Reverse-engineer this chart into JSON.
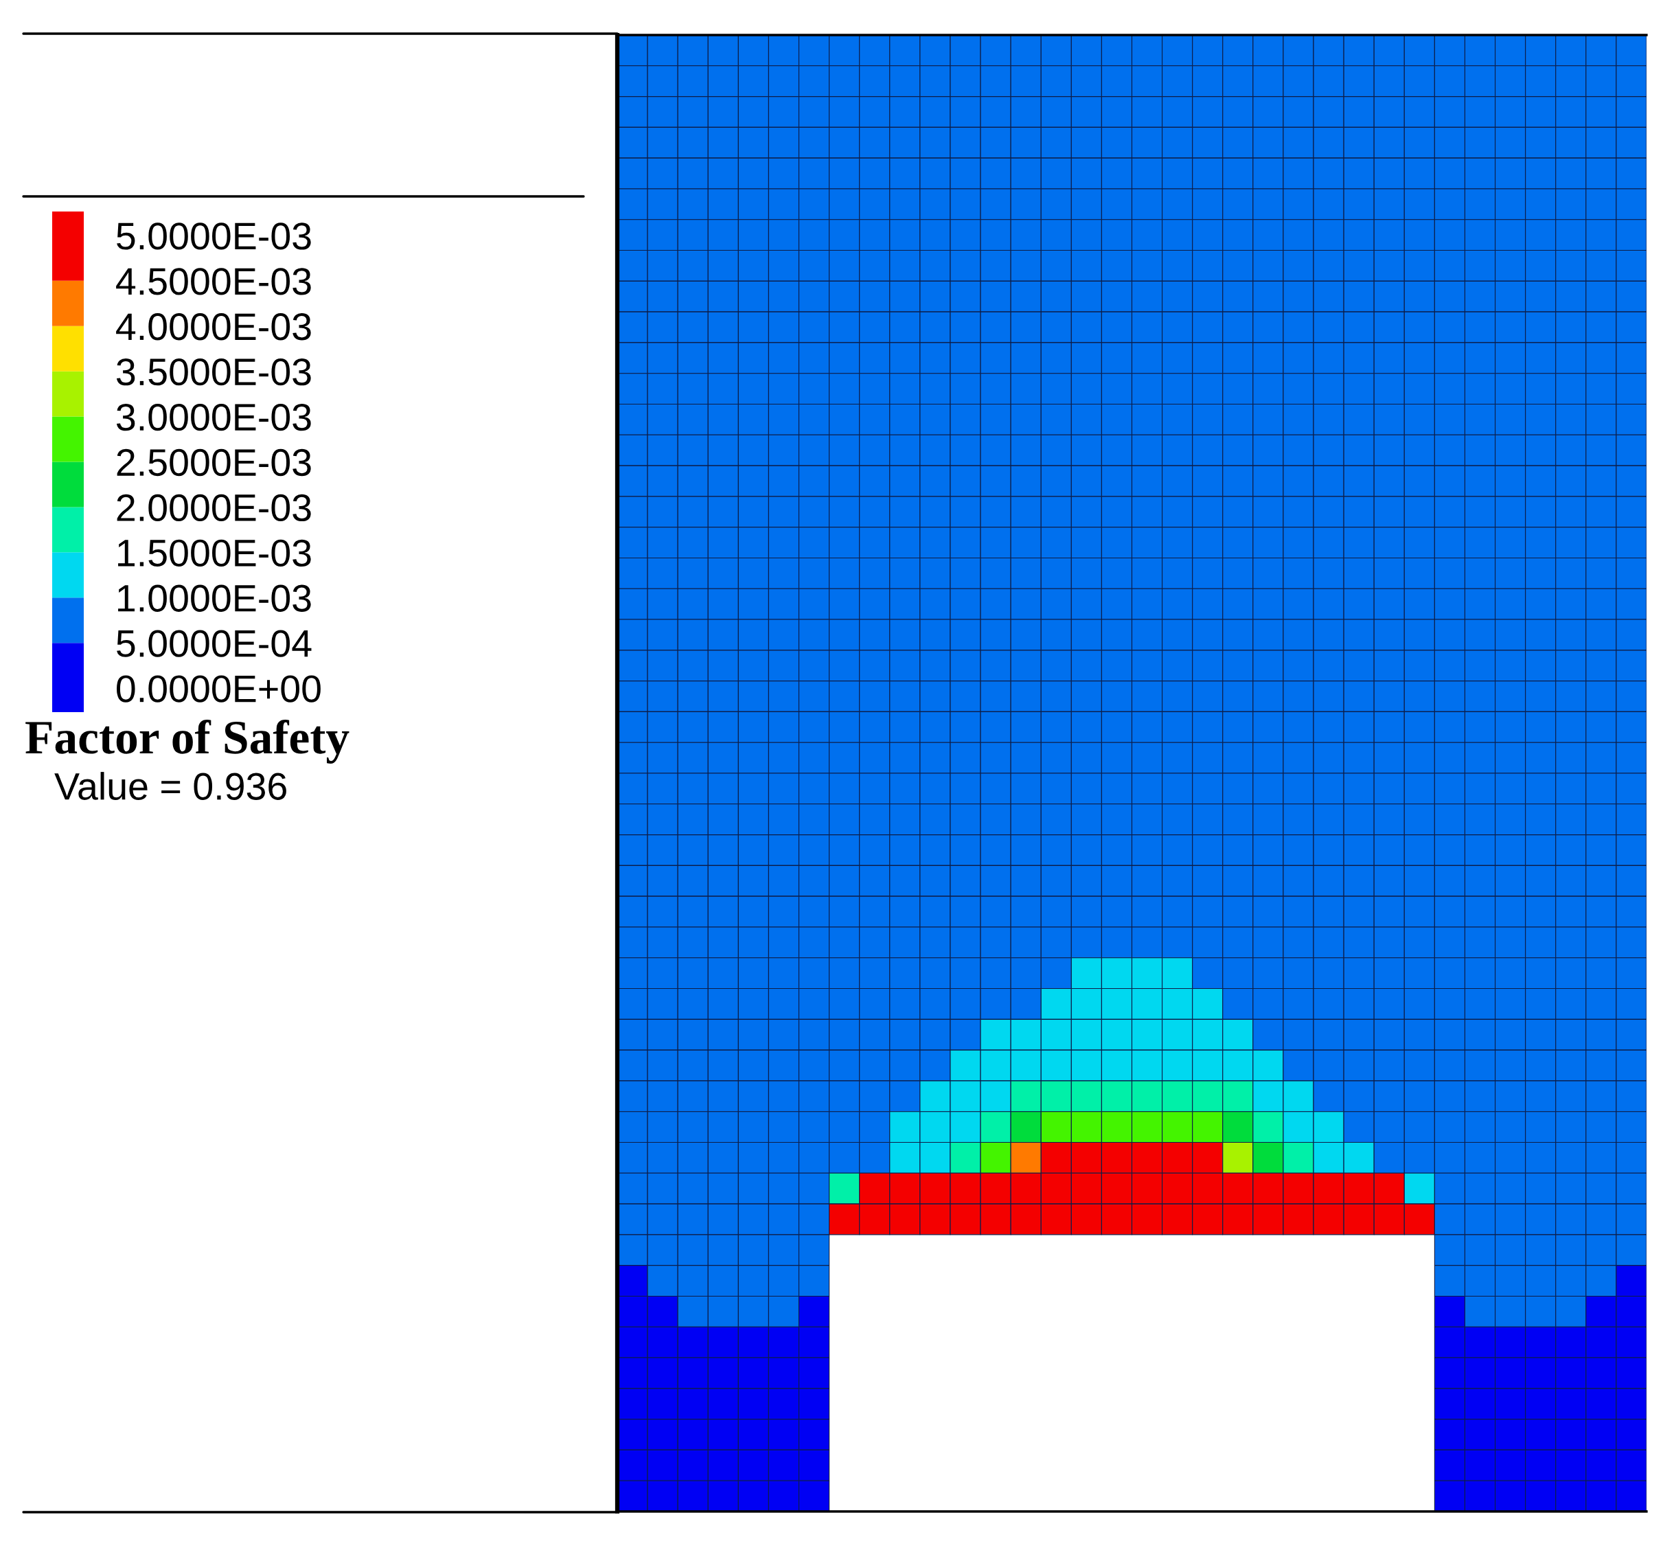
{
  "chart_data": {
    "type": "heatmap",
    "categories": [
      null,
      null,
      null,
      null,
      null,
      null,
      null,
      null,
      null,
      null,
      null,
      null,
      null,
      null,
      null,
      null,
      null,
      null,
      null,
      null,
      null,
      null,
      null,
      null,
      null,
      null,
      null,
      null,
      null,
      null,
      null,
      null,
      null,
      null
    ],
    "y_categories": [
      null,
      null,
      null,
      null,
      null,
      null,
      null,
      null,
      null,
      null,
      null,
      null,
      null,
      null,
      null,
      null,
      null,
      null,
      null,
      null,
      null,
      null,
      null,
      null,
      null,
      null,
      null,
      null,
      null,
      null,
      null,
      null,
      null,
      null,
      null,
      null,
      null,
      null,
      null,
      null,
      null,
      null,
      null,
      null,
      null,
      null,
      null,
      null
    ],
    "colors": [
      "#0000f4",
      "#0070ee",
      "#00d8f0",
      "#00f0a8",
      "#00dc3c",
      "#44f400",
      "#a8f200",
      "#ffe000",
      "#ff7a00",
      "#f40000"
    ],
    "clim": [
      0,
      0.005
    ],
    "cticks": [
      {
        "value": 0,
        "label": "0.0000E+00"
      },
      {
        "value": 0.0005,
        "label": "5.0000E-04"
      },
      {
        "value": 0.001,
        "label": "1.0000E-03"
      },
      {
        "value": 0.0015,
        "label": "1.5000E-03"
      },
      {
        "value": 0.002,
        "label": "2.0000E-03"
      },
      {
        "value": 0.0025,
        "label": "2.5000E-03"
      },
      {
        "value": 0.003,
        "label": "3.0000E-03"
      },
      {
        "value": 0.0035,
        "label": "3.5000E-03"
      },
      {
        "value": 0.004,
        "label": "4.0000E-03"
      },
      {
        "value": 0.0045,
        "label": "4.5000E-03"
      },
      {
        "value": 0.005,
        "label": "5.0000E-03"
      }
    ],
    "annotations": [
      "Factor of Safety",
      "Value = 0.936"
    ],
    "cells": [
      [
        0.00075,
        0.00075,
        0.00075,
        0.00075,
        0.00075,
        0.00075,
        0.00075,
        0.00075,
        0.00075,
        0.00075,
        0.00075,
        0.00075,
        0.00075,
        0.00075,
        0.00075,
        0.00075,
        0.00075,
        0.00075,
        0.00075,
        0.00075,
        0.00075,
        0.00075,
        0.00075,
        0.00075,
        0.00075,
        0.00075,
        0.00075,
        0.00075,
        0.00075,
        0.00075,
        0.00075,
        0.00075,
        0.00075,
        0.00075
      ],
      [
        0.00075,
        0.00075,
        0.00075,
        0.00075,
        0.00075,
        0.00075,
        0.00075,
        0.00075,
        0.00075,
        0.00075,
        0.00075,
        0.00075,
        0.00075,
        0.00075,
        0.00075,
        0.00075,
        0.00075,
        0.00075,
        0.00075,
        0.00075,
        0.00075,
        0.00075,
        0.00075,
        0.00075,
        0.00075,
        0.00075,
        0.00075,
        0.00075,
        0.00075,
        0.00075,
        0.00075,
        0.00075,
        0.00075,
        0.00075
      ],
      [
        0.00075,
        0.00075,
        0.00075,
        0.00075,
        0.00075,
        0.00075,
        0.00075,
        0.00075,
        0.00075,
        0.00075,
        0.00075,
        0.00075,
        0.00075,
        0.00075,
        0.00075,
        0.00075,
        0.00075,
        0.00075,
        0.00075,
        0.00075,
        0.00075,
        0.00075,
        0.00075,
        0.00075,
        0.00075,
        0.00075,
        0.00075,
        0.00075,
        0.00075,
        0.00075,
        0.00075,
        0.00075,
        0.00075,
        0.00075
      ],
      [
        0.00075,
        0.00075,
        0.00075,
        0.00075,
        0.00075,
        0.00075,
        0.00075,
        0.00075,
        0.00075,
        0.00075,
        0.00075,
        0.00075,
        0.00075,
        0.00075,
        0.00075,
        0.00075,
        0.00075,
        0.00075,
        0.00075,
        0.00075,
        0.00075,
        0.00075,
        0.00075,
        0.00075,
        0.00075,
        0.00075,
        0.00075,
        0.00075,
        0.00075,
        0.00075,
        0.00075,
        0.00075,
        0.00075,
        0.00075
      ],
      [
        0.00075,
        0.00075,
        0.00075,
        0.00075,
        0.00075,
        0.00075,
        0.00075,
        0.00075,
        0.00075,
        0.00075,
        0.00075,
        0.00075,
        0.00075,
        0.00075,
        0.00075,
        0.00075,
        0.00075,
        0.00075,
        0.00075,
        0.00075,
        0.00075,
        0.00075,
        0.00075,
        0.00075,
        0.00075,
        0.00075,
        0.00075,
        0.00075,
        0.00075,
        0.00075,
        0.00075,
        0.00075,
        0.00075,
        0.00075
      ],
      [
        0.00075,
        0.00075,
        0.00075,
        0.00075,
        0.00075,
        0.00075,
        0.00075,
        0.00075,
        0.00075,
        0.00075,
        0.00075,
        0.00075,
        0.00075,
        0.00075,
        0.00075,
        0.00075,
        0.00075,
        0.00075,
        0.00075,
        0.00075,
        0.00075,
        0.00075,
        0.00075,
        0.00075,
        0.00075,
        0.00075,
        0.00075,
        0.00075,
        0.00075,
        0.00075,
        0.00075,
        0.00075,
        0.00075,
        0.00075
      ],
      [
        0.00075,
        0.00075,
        0.00075,
        0.00075,
        0.00075,
        0.00075,
        0.00075,
        0.00075,
        0.00075,
        0.00075,
        0.00075,
        0.00075,
        0.00075,
        0.00075,
        0.00075,
        0.00075,
        0.00075,
        0.00075,
        0.00075,
        0.00075,
        0.00075,
        0.00075,
        0.00075,
        0.00075,
        0.00075,
        0.00075,
        0.00075,
        0.00075,
        0.00075,
        0.00075,
        0.00075,
        0.00075,
        0.00075,
        0.00075
      ],
      [
        0.00075,
        0.00075,
        0.00075,
        0.00075,
        0.00075,
        0.00075,
        0.00075,
        0.00075,
        0.00075,
        0.00075,
        0.00075,
        0.00075,
        0.00075,
        0.00075,
        0.00075,
        0.00075,
        0.00075,
        0.00075,
        0.00075,
        0.00075,
        0.00075,
        0.00075,
        0.00075,
        0.00075,
        0.00075,
        0.00075,
        0.00075,
        0.00075,
        0.00075,
        0.00075,
        0.00075,
        0.00075,
        0.00075,
        0.00075
      ],
      [
        0.00075,
        0.00075,
        0.00075,
        0.00075,
        0.00075,
        0.00075,
        0.00075,
        0.00075,
        0.00075,
        0.00075,
        0.00075,
        0.00075,
        0.00075,
        0.00075,
        0.00075,
        0.00075,
        0.00075,
        0.00075,
        0.00075,
        0.00075,
        0.00075,
        0.00075,
        0.00075,
        0.00075,
        0.00075,
        0.00075,
        0.00075,
        0.00075,
        0.00075,
        0.00075,
        0.00075,
        0.00075,
        0.00075,
        0.00075
      ],
      [
        0.00075,
        0.00075,
        0.00075,
        0.00075,
        0.00075,
        0.00075,
        0.00075,
        0.00075,
        0.00075,
        0.00075,
        0.00075,
        0.00075,
        0.00075,
        0.00075,
        0.00075,
        0.00075,
        0.00075,
        0.00075,
        0.00075,
        0.00075,
        0.00075,
        0.00075,
        0.00075,
        0.00075,
        0.00075,
        0.00075,
        0.00075,
        0.00075,
        0.00075,
        0.00075,
        0.00075,
        0.00075,
        0.00075,
        0.00075
      ],
      [
        0.00075,
        0.00075,
        0.00075,
        0.00075,
        0.00075,
        0.00075,
        0.00075,
        0.00075,
        0.00075,
        0.00075,
        0.00075,
        0.00075,
        0.00075,
        0.00075,
        0.00075,
        0.00075,
        0.00075,
        0.00075,
        0.00075,
        0.00075,
        0.00075,
        0.00075,
        0.00075,
        0.00075,
        0.00075,
        0.00075,
        0.00075,
        0.00075,
        0.00075,
        0.00075,
        0.00075,
        0.00075,
        0.00075,
        0.00075
      ],
      [
        0.00075,
        0.00075,
        0.00075,
        0.00075,
        0.00075,
        0.00075,
        0.00075,
        0.00075,
        0.00075,
        0.00075,
        0.00075,
        0.00075,
        0.00075,
        0.00075,
        0.00075,
        0.00075,
        0.00075,
        0.00075,
        0.00075,
        0.00075,
        0.00075,
        0.00075,
        0.00075,
        0.00075,
        0.00075,
        0.00075,
        0.00075,
        0.00075,
        0.00075,
        0.00075,
        0.00075,
        0.00075,
        0.00075,
        0.00075
      ],
      [
        0.00075,
        0.00075,
        0.00075,
        0.00075,
        0.00075,
        0.00075,
        0.00075,
        0.00075,
        0.00075,
        0.00075,
        0.00075,
        0.00075,
        0.00075,
        0.00075,
        0.00075,
        0.00075,
        0.00075,
        0.00075,
        0.00075,
        0.00075,
        0.00075,
        0.00075,
        0.00075,
        0.00075,
        0.00075,
        0.00075,
        0.00075,
        0.00075,
        0.00075,
        0.00075,
        0.00075,
        0.00075,
        0.00075,
        0.00075
      ],
      [
        0.00075,
        0.00075,
        0.00075,
        0.00075,
        0.00075,
        0.00075,
        0.00075,
        0.00075,
        0.00075,
        0.00075,
        0.00075,
        0.00075,
        0.00075,
        0.00075,
        0.00075,
        0.00075,
        0.00075,
        0.00075,
        0.00075,
        0.00075,
        0.00075,
        0.00075,
        0.00075,
        0.00075,
        0.00075,
        0.00075,
        0.00075,
        0.00075,
        0.00075,
        0.00075,
        0.00075,
        0.00075,
        0.00075,
        0.00075
      ],
      [
        0.00075,
        0.00075,
        0.00075,
        0.00075,
        0.00075,
        0.00075,
        0.00075,
        0.00075,
        0.00075,
        0.00075,
        0.00075,
        0.00075,
        0.00075,
        0.00075,
        0.00075,
        0.00075,
        0.00075,
        0.00075,
        0.00075,
        0.00075,
        0.00075,
        0.00075,
        0.00075,
        0.00075,
        0.00075,
        0.00075,
        0.00075,
        0.00075,
        0.00075,
        0.00075,
        0.00075,
        0.00075,
        0.00075,
        0.00075
      ],
      [
        0.00075,
        0.00075,
        0.00075,
        0.00075,
        0.00075,
        0.00075,
        0.00075,
        0.00075,
        0.00075,
        0.00075,
        0.00075,
        0.00075,
        0.00075,
        0.00075,
        0.00075,
        0.00075,
        0.00075,
        0.00075,
        0.00075,
        0.00075,
        0.00075,
        0.00075,
        0.00075,
        0.00075,
        0.00075,
        0.00075,
        0.00075,
        0.00075,
        0.00075,
        0.00075,
        0.00075,
        0.00075,
        0.00075,
        0.00075
      ],
      [
        0.00075,
        0.00075,
        0.00075,
        0.00075,
        0.00075,
        0.00075,
        0.00075,
        0.00075,
        0.00075,
        0.00075,
        0.00075,
        0.00075,
        0.00075,
        0.00075,
        0.00075,
        0.00075,
        0.00075,
        0.00075,
        0.00075,
        0.00075,
        0.00075,
        0.00075,
        0.00075,
        0.00075,
        0.00075,
        0.00075,
        0.00075,
        0.00075,
        0.00075,
        0.00075,
        0.00075,
        0.00075,
        0.00075,
        0.00075
      ],
      [
        0.00075,
        0.00075,
        0.00075,
        0.00075,
        0.00075,
        0.00075,
        0.00075,
        0.00075,
        0.00075,
        0.00075,
        0.00075,
        0.00075,
        0.00075,
        0.00075,
        0.00075,
        0.00075,
        0.00075,
        0.00075,
        0.00075,
        0.00075,
        0.00075,
        0.00075,
        0.00075,
        0.00075,
        0.00075,
        0.00075,
        0.00075,
        0.00075,
        0.00075,
        0.00075,
        0.00075,
        0.00075,
        0.00075,
        0.00075
      ],
      [
        0.00075,
        0.00075,
        0.00075,
        0.00075,
        0.00075,
        0.00075,
        0.00075,
        0.00075,
        0.00075,
        0.00075,
        0.00075,
        0.00075,
        0.00075,
        0.00075,
        0.00075,
        0.00075,
        0.00075,
        0.00075,
        0.00075,
        0.00075,
        0.00075,
        0.00075,
        0.00075,
        0.00075,
        0.00075,
        0.00075,
        0.00075,
        0.00075,
        0.00075,
        0.00075,
        0.00075,
        0.00075,
        0.00075,
        0.00075
      ],
      [
        0.00075,
        0.00075,
        0.00075,
        0.00075,
        0.00075,
        0.00075,
        0.00075,
        0.00075,
        0.00075,
        0.00075,
        0.00075,
        0.00075,
        0.00075,
        0.00075,
        0.00075,
        0.00075,
        0.00075,
        0.00075,
        0.00075,
        0.00075,
        0.00075,
        0.00075,
        0.00075,
        0.00075,
        0.00075,
        0.00075,
        0.00075,
        0.00075,
        0.00075,
        0.00075,
        0.00075,
        0.00075,
        0.00075,
        0.00075
      ],
      [
        0.00075,
        0.00075,
        0.00075,
        0.00075,
        0.00075,
        0.00075,
        0.00075,
        0.00075,
        0.00075,
        0.00075,
        0.00075,
        0.00075,
        0.00075,
        0.00075,
        0.00075,
        0.00075,
        0.00075,
        0.00075,
        0.00075,
        0.00075,
        0.00075,
        0.00075,
        0.00075,
        0.00075,
        0.00075,
        0.00075,
        0.00075,
        0.00075,
        0.00075,
        0.00075,
        0.00075,
        0.00075,
        0.00075,
        0.00075
      ],
      [
        0.00075,
        0.00075,
        0.00075,
        0.00075,
        0.00075,
        0.00075,
        0.00075,
        0.00075,
        0.00075,
        0.00075,
        0.00075,
        0.00075,
        0.00075,
        0.00075,
        0.00075,
        0.00075,
        0.00075,
        0.00075,
        0.00075,
        0.00075,
        0.00075,
        0.00075,
        0.00075,
        0.00075,
        0.00075,
        0.00075,
        0.00075,
        0.00075,
        0.00075,
        0.00075,
        0.00075,
        0.00075,
        0.00075,
        0.00075
      ],
      [
        0.00075,
        0.00075,
        0.00075,
        0.00075,
        0.00075,
        0.00075,
        0.00075,
        0.00075,
        0.00075,
        0.00075,
        0.00075,
        0.00075,
        0.00075,
        0.00075,
        0.00075,
        0.00075,
        0.00075,
        0.00075,
        0.00075,
        0.00075,
        0.00075,
        0.00075,
        0.00075,
        0.00075,
        0.00075,
        0.00075,
        0.00075,
        0.00075,
        0.00075,
        0.00075,
        0.00075,
        0.00075,
        0.00075,
        0.00075
      ],
      [
        0.00075,
        0.00075,
        0.00075,
        0.00075,
        0.00075,
        0.00075,
        0.00075,
        0.00075,
        0.00075,
        0.00075,
        0.00075,
        0.00075,
        0.00075,
        0.00075,
        0.00075,
        0.00075,
        0.00075,
        0.00075,
        0.00075,
        0.00075,
        0.00075,
        0.00075,
        0.00075,
        0.00075,
        0.00075,
        0.00075,
        0.00075,
        0.00075,
        0.00075,
        0.00075,
        0.00075,
        0.00075,
        0.00075,
        0.00075
      ],
      [
        0.00075,
        0.00075,
        0.00075,
        0.00075,
        0.00075,
        0.00075,
        0.00075,
        0.00075,
        0.00075,
        0.00075,
        0.00075,
        0.00075,
        0.00075,
        0.00075,
        0.00075,
        0.00075,
        0.00075,
        0.00075,
        0.00075,
        0.00075,
        0.00075,
        0.00075,
        0.00075,
        0.00075,
        0.00075,
        0.00075,
        0.00075,
        0.00075,
        0.00075,
        0.00075,
        0.00075,
        0.00075,
        0.00075,
        0.00075
      ],
      [
        0.00075,
        0.00075,
        0.00075,
        0.00075,
        0.00075,
        0.00075,
        0.00075,
        0.00075,
        0.00075,
        0.00075,
        0.00075,
        0.00075,
        0.00075,
        0.00075,
        0.00075,
        0.00075,
        0.00075,
        0.00075,
        0.00075,
        0.00075,
        0.00075,
        0.00075,
        0.00075,
        0.00075,
        0.00075,
        0.00075,
        0.00075,
        0.00075,
        0.00075,
        0.00075,
        0.00075,
        0.00075,
        0.00075,
        0.00075
      ],
      [
        0.00075,
        0.00075,
        0.00075,
        0.00075,
        0.00075,
        0.00075,
        0.00075,
        0.00075,
        0.00075,
        0.00075,
        0.00075,
        0.00075,
        0.00075,
        0.00075,
        0.00075,
        0.00075,
        0.00075,
        0.00075,
        0.00075,
        0.00075,
        0.00075,
        0.00075,
        0.00075,
        0.00075,
        0.00075,
        0.00075,
        0.00075,
        0.00075,
        0.00075,
        0.00075,
        0.00075,
        0.00075,
        0.00075,
        0.00075
      ],
      [
        0.00075,
        0.00075,
        0.00075,
        0.00075,
        0.00075,
        0.00075,
        0.00075,
        0.00075,
        0.00075,
        0.00075,
        0.00075,
        0.00075,
        0.00075,
        0.00075,
        0.00075,
        0.00075,
        0.00075,
        0.00075,
        0.00075,
        0.00075,
        0.00075,
        0.00075,
        0.00075,
        0.00075,
        0.00075,
        0.00075,
        0.00075,
        0.00075,
        0.00075,
        0.00075,
        0.00075,
        0.00075,
        0.00075,
        0.00075
      ],
      [
        0.00075,
        0.00075,
        0.00075,
        0.00075,
        0.00075,
        0.00075,
        0.00075,
        0.00075,
        0.00075,
        0.00075,
        0.00075,
        0.00075,
        0.00075,
        0.00075,
        0.00075,
        0.00075,
        0.00075,
        0.00075,
        0.00075,
        0.00075,
        0.00075,
        0.00075,
        0.00075,
        0.00075,
        0.00075,
        0.00075,
        0.00075,
        0.00075,
        0.00075,
        0.00075,
        0.00075,
        0.00075,
        0.00075,
        0.00075
      ],
      [
        0.00075,
        0.00075,
        0.00075,
        0.00075,
        0.00075,
        0.00075,
        0.00075,
        0.00075,
        0.00075,
        0.00075,
        0.00075,
        0.00075,
        0.00075,
        0.00075,
        0.00075,
        0.00075,
        0.00075,
        0.00075,
        0.00075,
        0.00075,
        0.00075,
        0.00075,
        0.00075,
        0.00075,
        0.00075,
        0.00075,
        0.00075,
        0.00075,
        0.00075,
        0.00075,
        0.00075,
        0.00075,
        0.00075,
        0.00075
      ],
      [
        0.00075,
        0.00075,
        0.00075,
        0.00075,
        0.00075,
        0.00075,
        0.00075,
        0.00075,
        0.00075,
        0.00075,
        0.00075,
        0.00075,
        0.00075,
        0.00075,
        0.00075,
        0.00125,
        0.00125,
        0.00125,
        0.00125,
        0.00075,
        0.00075,
        0.00075,
        0.00075,
        0.00075,
        0.00075,
        0.00075,
        0.00075,
        0.00075,
        0.00075,
        0.00075,
        0.00075,
        0.00075,
        0.00075,
        0.00075
      ],
      [
        0.00075,
        0.00075,
        0.00075,
        0.00075,
        0.00075,
        0.00075,
        0.00075,
        0.00075,
        0.00075,
        0.00075,
        0.00075,
        0.00075,
        0.00075,
        0.00075,
        0.00125,
        0.00125,
        0.00125,
        0.00125,
        0.00125,
        0.00125,
        0.00075,
        0.00075,
        0.00075,
        0.00075,
        0.00075,
        0.00075,
        0.00075,
        0.00075,
        0.00075,
        0.00075,
        0.00075,
        0.00075,
        0.00075,
        0.00075
      ],
      [
        0.00075,
        0.00075,
        0.00075,
        0.00075,
        0.00075,
        0.00075,
        0.00075,
        0.00075,
        0.00075,
        0.00075,
        0.00075,
        0.00075,
        0.00125,
        0.00125,
        0.00125,
        0.00125,
        0.00125,
        0.00125,
        0.00125,
        0.00125,
        0.00125,
        0.00075,
        0.00075,
        0.00075,
        0.00075,
        0.00075,
        0.00075,
        0.00075,
        0.00075,
        0.00075,
        0.00075,
        0.00075,
        0.00075,
        0.00075
      ],
      [
        0.00075,
        0.00075,
        0.00075,
        0.00075,
        0.00075,
        0.00075,
        0.00075,
        0.00075,
        0.00075,
        0.00075,
        0.00075,
        0.00125,
        0.00125,
        0.00125,
        0.00125,
        0.00125,
        0.00125,
        0.00125,
        0.00125,
        0.00125,
        0.00125,
        0.00125,
        0.00075,
        0.00075,
        0.00075,
        0.00075,
        0.00075,
        0.00075,
        0.00075,
        0.00075,
        0.00075,
        0.00075,
        0.00075,
        0.00075
      ],
      [
        0.00075,
        0.00075,
        0.00075,
        0.00075,
        0.00075,
        0.00075,
        0.00075,
        0.00075,
        0.00075,
        0.00075,
        0.00125,
        0.00125,
        0.00125,
        0.00175,
        0.00175,
        0.00175,
        0.00175,
        0.00175,
        0.00175,
        0.00175,
        0.00175,
        0.00125,
        0.00125,
        0.00075,
        0.00075,
        0.00075,
        0.00075,
        0.00075,
        0.00075,
        0.00075,
        0.00075,
        0.00075,
        0.00075,
        0.00075
      ],
      [
        0.00075,
        0.00075,
        0.00075,
        0.00075,
        0.00075,
        0.00075,
        0.00075,
        0.00075,
        0.00075,
        0.00125,
        0.00125,
        0.00125,
        0.00175,
        0.00225,
        0.00275,
        0.00275,
        0.00275,
        0.00275,
        0.00275,
        0.00275,
        0.00225,
        0.00175,
        0.00125,
        0.00125,
        0.00075,
        0.00075,
        0.00075,
        0.00075,
        0.00075,
        0.00075,
        0.00075,
        0.00075,
        0.00075,
        0.00075
      ],
      [
        0.00075,
        0.00075,
        0.00075,
        0.00075,
        0.00075,
        0.00075,
        0.00075,
        0.00075,
        0.00075,
        0.00125,
        0.00125,
        0.00175,
        0.00275,
        0.00425,
        0.00475,
        0.00475,
        0.00475,
        0.00475,
        0.00475,
        0.00475,
        0.00325,
        0.00225,
        0.00175,
        0.00125,
        0.00125,
        0.00075,
        0.00075,
        0.00075,
        0.00075,
        0.00075,
        0.00075,
        0.00075,
        0.00075,
        0.00075
      ],
      [
        0.00075,
        0.00075,
        0.00075,
        0.00075,
        0.00075,
        0.00075,
        0.00075,
        0.00175,
        0.00475,
        0.00475,
        0.00475,
        0.00475,
        0.00475,
        0.00475,
        0.00475,
        0.00475,
        0.00475,
        0.00475,
        0.00475,
        0.00475,
        0.00475,
        0.00475,
        0.00475,
        0.00475,
        0.00475,
        0.00475,
        0.00125,
        0.00075,
        0.00075,
        0.00075,
        0.00075,
        0.00075,
        0.00075,
        0.00075
      ],
      [
        0.00075,
        0.00075,
        0.00075,
        0.00075,
        0.00075,
        0.00075,
        0.00075,
        0.00475,
        0.00475,
        0.00475,
        0.00475,
        0.00475,
        0.00475,
        0.00475,
        0.00475,
        0.00475,
        0.00475,
        0.00475,
        0.00475,
        0.00475,
        0.00475,
        0.00475,
        0.00475,
        0.00475,
        0.00475,
        0.00475,
        0.00475,
        0.00075,
        0.00075,
        0.00075,
        0.00075,
        0.00075,
        0.00075,
        0.00075
      ],
      [
        0.00075,
        0.00075,
        0.00075,
        0.00075,
        0.00075,
        0.00075,
        0.00075,
        null,
        null,
        null,
        null,
        null,
        null,
        null,
        null,
        null,
        null,
        null,
        null,
        null,
        null,
        null,
        null,
        null,
        null,
        null,
        null,
        0.00075,
        0.00075,
        0.00075,
        0.00075,
        0.00075,
        0.00075,
        0.00075
      ],
      [
        0.00025,
        0.00075,
        0.00075,
        0.00075,
        0.00075,
        0.00075,
        0.00075,
        null,
        null,
        null,
        null,
        null,
        null,
        null,
        null,
        null,
        null,
        null,
        null,
        null,
        null,
        null,
        null,
        null,
        null,
        null,
        null,
        0.00075,
        0.00075,
        0.00075,
        0.00075,
        0.00075,
        0.00075,
        0.00025
      ],
      [
        0.00025,
        0.00025,
        0.00075,
        0.00075,
        0.00075,
        0.00075,
        0.00025,
        null,
        null,
        null,
        null,
        null,
        null,
        null,
        null,
        null,
        null,
        null,
        null,
        null,
        null,
        null,
        null,
        null,
        null,
        null,
        null,
        0.00025,
        0.00075,
        0.00075,
        0.00075,
        0.00075,
        0.00025,
        0.00025
      ],
      [
        0.00025,
        0.00025,
        0.00025,
        0.00025,
        0.00025,
        0.00025,
        0.00025,
        null,
        null,
        null,
        null,
        null,
        null,
        null,
        null,
        null,
        null,
        null,
        null,
        null,
        null,
        null,
        null,
        null,
        null,
        null,
        null,
        0.00025,
        0.00025,
        0.00025,
        0.00025,
        0.00025,
        0.00025,
        0.00025
      ],
      [
        0.00025,
        0.00025,
        0.00025,
        0.00025,
        0.00025,
        0.00025,
        0.00025,
        null,
        null,
        null,
        null,
        null,
        null,
        null,
        null,
        null,
        null,
        null,
        null,
        null,
        null,
        null,
        null,
        null,
        null,
        null,
        null,
        0.00025,
        0.00025,
        0.00025,
        0.00025,
        0.00025,
        0.00025,
        0.00025
      ],
      [
        0.00025,
        0.00025,
        0.00025,
        0.00025,
        0.00025,
        0.00025,
        0.00025,
        null,
        null,
        null,
        null,
        null,
        null,
        null,
        null,
        null,
        null,
        null,
        null,
        null,
        null,
        null,
        null,
        null,
        null,
        null,
        null,
        0.00025,
        0.00025,
        0.00025,
        0.00025,
        0.00025,
        0.00025,
        0.00025
      ],
      [
        0.00025,
        0.00025,
        0.00025,
        0.00025,
        0.00025,
        0.00025,
        0.00025,
        null,
        null,
        null,
        null,
        null,
        null,
        null,
        null,
        null,
        null,
        null,
        null,
        null,
        null,
        null,
        null,
        null,
        null,
        null,
        null,
        0.00025,
        0.00025,
        0.00025,
        0.00025,
        0.00025,
        0.00025,
        0.00025
      ],
      [
        0.00025,
        0.00025,
        0.00025,
        0.00025,
        0.00025,
        0.00025,
        0.00025,
        null,
        null,
        null,
        null,
        null,
        null,
        null,
        null,
        null,
        null,
        null,
        null,
        null,
        null,
        null,
        null,
        null,
        null,
        null,
        null,
        0.00025,
        0.00025,
        0.00025,
        0.00025,
        0.00025,
        0.00025,
        0.00025
      ],
      [
        0.00025,
        0.00025,
        0.00025,
        0.00025,
        0.00025,
        0.00025,
        0.00025,
        null,
        null,
        null,
        null,
        null,
        null,
        null,
        null,
        null,
        null,
        null,
        null,
        null,
        null,
        null,
        null,
        null,
        null,
        null,
        null,
        0.00025,
        0.00025,
        0.00025,
        0.00025,
        0.00025,
        0.00025,
        0.00025
      ]
    ]
  }
}
